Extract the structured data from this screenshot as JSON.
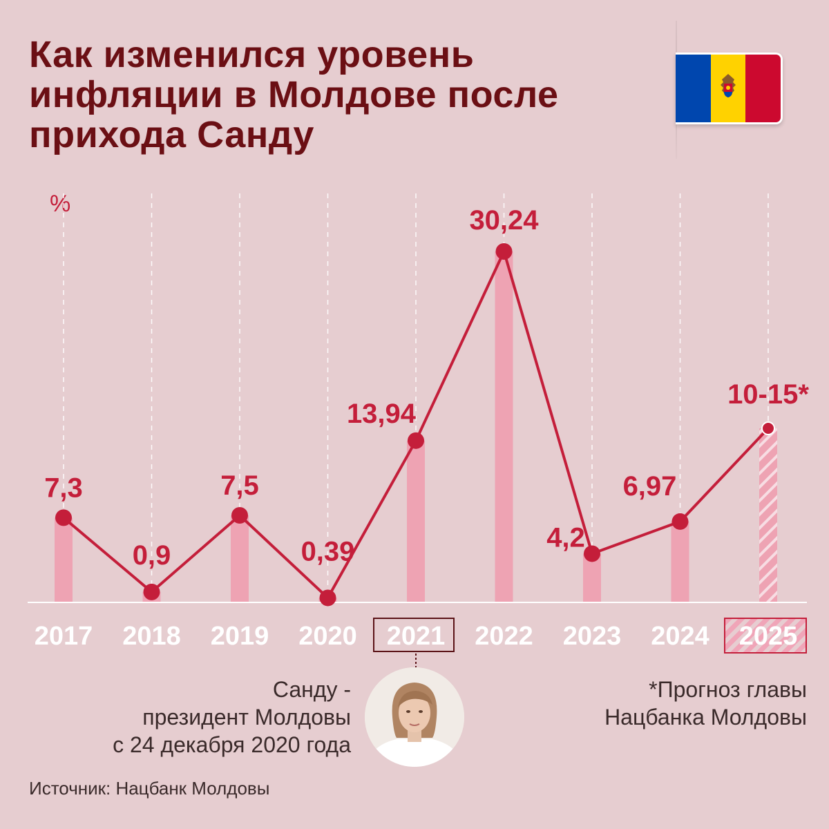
{
  "title_lines": [
    "Как изменился уровень",
    "инфляции в Молдове после",
    "прихода Санду"
  ],
  "unit": "%",
  "flag": {
    "colors": [
      "#0046ae",
      "#ffd200",
      "#cc092f"
    ]
  },
  "chart_data": {
    "type": "line",
    "categories": [
      "2017",
      "2018",
      "2019",
      "2020",
      "2021",
      "2022",
      "2023",
      "2024",
      "2025"
    ],
    "values": [
      7.3,
      0.9,
      7.5,
      0.39,
      13.94,
      30.24,
      4.2,
      6.97,
      15
    ],
    "value_labels": [
      "7,3",
      "0,9",
      "7,5",
      "0,39",
      "13,94",
      "30,24",
      "4,2",
      "6,97",
      "10-15*"
    ],
    "forecast_range": [
      10,
      15
    ],
    "forecast_category": "2025",
    "highlight_category": "2021",
    "ylabel": "%",
    "ylim": [
      0,
      30.24
    ],
    "grid": true,
    "colors": {
      "line": "#c41e3a",
      "bar": "#eea3b3",
      "label": "#c41e3a",
      "axis_text": "#ffffff"
    }
  },
  "caption_left": [
    "Санду -",
    "президент Молдовы",
    "с 24 декабря 2020 года"
  ],
  "caption_right": [
    "*Прогноз главы",
    "Нацбанка Молдовы"
  ],
  "source": "Источник: Нацбанк Молдовы"
}
